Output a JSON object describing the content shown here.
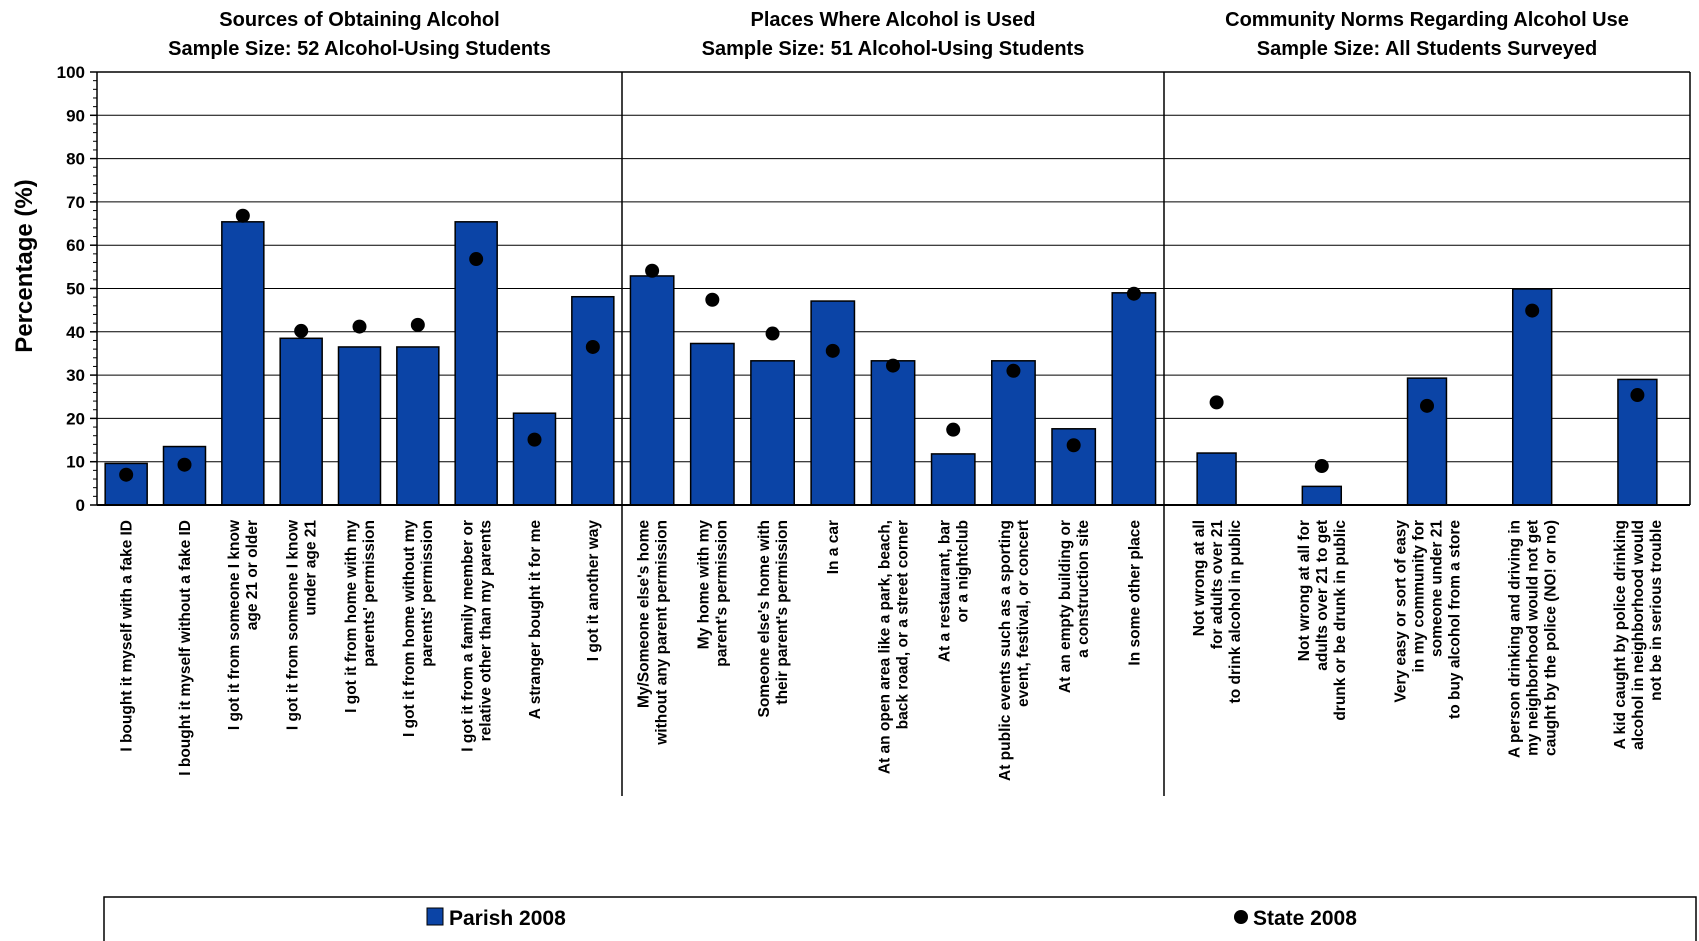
{
  "chart_data": {
    "type": "bar",
    "ylabel": "Percentage (%)",
    "ylim": [
      0,
      100
    ],
    "yticks": [
      0,
      10,
      20,
      30,
      40,
      50,
      60,
      70,
      80,
      90,
      100
    ],
    "grid": true,
    "legend": {
      "position": "bottom",
      "entries": [
        {
          "name": "Parish 2008",
          "marker": "bar",
          "color": "#0b44a6"
        },
        {
          "name": "State 2008",
          "marker": "dot",
          "color": "#000000"
        }
      ]
    },
    "panels": [
      {
        "title_line1": "Sources of Obtaining Alcohol",
        "title_line2": "Sample Size: 52 Alcohol-Using Students",
        "categories": [
          [
            "I bought it myself with a fake ID"
          ],
          [
            "I bought it myself without a fake ID"
          ],
          [
            "I got it from someone I know",
            "age 21 or older"
          ],
          [
            "I got it from someone I know",
            "under age 21"
          ],
          [
            "I got it from home with my",
            "parents' permission"
          ],
          [
            "I got it from home without my",
            "parents' permission"
          ],
          [
            "I got it from a family member or",
            "relative other than my parents"
          ],
          [
            "A stranger bought it for me"
          ],
          [
            "I got it another way"
          ]
        ],
        "series": [
          {
            "name": "Parish 2008",
            "values": [
              9.6,
              13.5,
              65.4,
              38.5,
              36.5,
              36.5,
              65.4,
              21.2,
              48.1
            ]
          },
          {
            "name": "State 2008",
            "values": [
              7,
              9.3,
              66.8,
              40.2,
              41.2,
              41.6,
              56.8,
              15.1,
              36.5
            ]
          }
        ]
      },
      {
        "title_line1": "Places Where Alcohol is Used",
        "title_line2": "Sample Size: 51 Alcohol-Using Students",
        "categories": [
          [
            "My/Someone else's home",
            "without any parent permission"
          ],
          [
            "My home with my",
            "parent's permission"
          ],
          [
            "Someone else's home with",
            "their parent's permission"
          ],
          [
            "In a car"
          ],
          [
            "At an open area like a park, beach,",
            "back road, or a street corner"
          ],
          [
            "At a restaurant, bar",
            "or a nightclub"
          ],
          [
            "At public events such as a sporting",
            "event, festival, or concert"
          ],
          [
            "At an empty building or",
            "a construction site"
          ],
          [
            "In some other place"
          ]
        ],
        "series": [
          {
            "name": "Parish 2008",
            "values": [
              52.9,
              37.3,
              33.3,
              47.1,
              33.3,
              11.8,
              33.3,
              17.6,
              49.0
            ]
          },
          {
            "name": "State 2008",
            "values": [
              54.1,
              47.4,
              39.6,
              35.6,
              32.2,
              17.4,
              31.0,
              13.8,
              48.8
            ]
          }
        ]
      },
      {
        "title_line1": "Community Norms Regarding Alcohol Use",
        "title_line2": "Sample Size: All Students Surveyed",
        "categories": [
          [
            "Not wrong at all",
            "for adults over 21",
            "to drink alcohol in public"
          ],
          [
            "Not wrong at all for",
            "adults over 21 to get",
            "drunk or be drunk in public"
          ],
          [
            "Very easy or sort of easy",
            "in my community for",
            "someone under 21",
            "to buy alcohol from a store"
          ],
          [
            "A person drinking and driving in",
            "my neighborhood would not get",
            "caught by the police (NO! or no)"
          ],
          [
            "A kid caught by police drinking",
            "alcohol in neighborhood would",
            "not be in serious trouble"
          ]
        ],
        "series": [
          {
            "name": "Parish 2008",
            "values": [
              12.0,
              4.3,
              29.3,
              49.9,
              29.0
            ]
          },
          {
            "name": "State 2008",
            "values": [
              23.7,
              9.0,
              22.9,
              44.9,
              25.4
            ]
          }
        ]
      }
    ]
  }
}
